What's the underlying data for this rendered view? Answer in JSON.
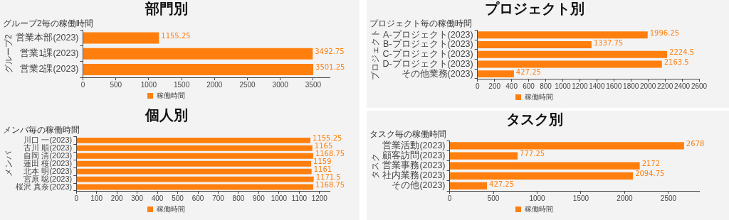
{
  "chart_data": [
    {
      "type": "bar",
      "orientation": "horizontal",
      "title": "部門別",
      "subtitle": "グループ2毎の稼働時間",
      "ylabel": "グループ2",
      "categories": [
        "営業本部(2023)",
        "営業1課(2023)",
        "営業2課(2023)"
      ],
      "series": [
        {
          "name": "稼働時間",
          "color": "#ff7f0e",
          "values": [
            1155.25,
            3492.75,
            3501.25
          ]
        }
      ],
      "xlim": [
        0,
        3750
      ],
      "xticks": [
        0,
        500,
        1000,
        1500,
        2000,
        2500,
        3000,
        3500
      ],
      "data_labels": true,
      "legend": "bottom",
      "grid": false
    },
    {
      "type": "bar",
      "orientation": "horizontal",
      "title": "プロジェクト別",
      "subtitle": "プロジェクト毎の稼働時間",
      "ylabel": "プロジェクト",
      "categories": [
        "A-プロジェクト(2023)",
        "B-プロジェクト(2023)",
        "C-プロジェクト(2023)",
        "D-プロジェクト(2023)",
        "その他業務(2023)"
      ],
      "series": [
        {
          "name": "稼働時間",
          "color": "#ff7f0e",
          "values": [
            1996.25,
            1337.75,
            2224.5,
            2163.5,
            427.25
          ]
        }
      ],
      "xlim": [
        0,
        2600
      ],
      "xticks": [
        0,
        200,
        400,
        600,
        800,
        1000,
        1200,
        1400,
        1600,
        1800,
        2000,
        2200,
        2400,
        2600
      ],
      "data_labels": true,
      "legend": "bottom",
      "grid": false
    },
    {
      "type": "bar",
      "orientation": "horizontal",
      "title": "個人別",
      "subtitle": "メンバ毎の稼働時間",
      "ylabel": "メンバ",
      "categories": [
        "川口 一(2023)",
        "古川 順(2023)",
        "自岡 清(2023)",
        "蓮田 桜(2023)",
        "北本 明(2023)",
        "宮原 聡(2023)",
        "桜沢 真奈(2023)"
      ],
      "series": [
        {
          "name": "稼働時間",
          "color": "#ff7f0e",
          "values": [
            1155.25,
            1165,
            1168.75,
            1159,
            1161,
            1171.5,
            1168.75
          ]
        }
      ],
      "xlim": [
        0,
        1250
      ],
      "xticks": [
        0,
        100,
        200,
        300,
        400,
        500,
        600,
        700,
        800,
        900,
        1000,
        1100,
        1200
      ],
      "data_labels": true,
      "legend": "bottom",
      "grid": false
    },
    {
      "type": "bar",
      "orientation": "horizontal",
      "title": "タスク別",
      "subtitle": "タスク毎の稼働時間",
      "ylabel": "タスク",
      "categories": [
        "営業活動(2023)",
        "顧客訪問(2023)",
        "営業事務(2023)",
        "社内業務(2023)",
        "その他(2023)"
      ],
      "series": [
        {
          "name": "稼働時間",
          "color": "#ff7f0e",
          "values": [
            2678,
            777.25,
            2172,
            2094.75,
            427.25
          ]
        }
      ],
      "xlim": [
        0,
        2850
      ],
      "xticks": [
        0,
        500,
        1000,
        1500,
        2000,
        2500
      ],
      "data_labels": true,
      "legend": "bottom",
      "grid": false
    }
  ]
}
